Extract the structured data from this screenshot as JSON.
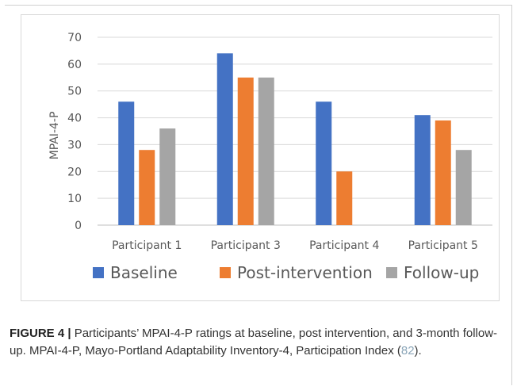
{
  "chart_data": {
    "type": "bar",
    "categories": [
      "Participant 1",
      "Participant 3",
      "Participant 4",
      "Participant 5"
    ],
    "series": [
      {
        "name": "Baseline",
        "values": [
          46,
          64,
          46,
          41
        ],
        "color": "#4472C4"
      },
      {
        "name": "Post-intervention",
        "values": [
          28,
          55,
          20,
          39
        ],
        "color": "#ED7D31"
      },
      {
        "name": "Follow-up",
        "values": [
          36,
          55,
          0,
          28
        ],
        "color": "#A5A5A5"
      }
    ],
    "title": "",
    "xlabel": "",
    "ylabel": "MPAI-4-P",
    "ylim": [
      0,
      70
    ],
    "yticks": [
      0,
      10,
      20,
      30,
      40,
      50,
      60,
      70
    ],
    "grid": true,
    "legend_position": "bottom"
  },
  "caption": {
    "label": "FIGURE 4 |",
    "text_before_ref": " Participants’ MPAI-4-P ratings at baseline, post intervention, and 3-month follow-up. MPAI-4-P, Mayo-Portland Adaptability Inventory-4, Participation Index (",
    "ref": "82",
    "text_after_ref": ")."
  }
}
